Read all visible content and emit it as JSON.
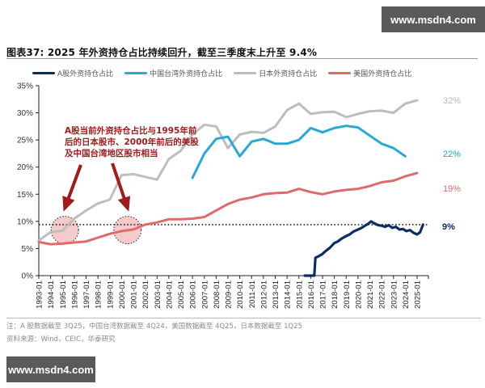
{
  "watermark": {
    "text": "www.msdn4.com"
  },
  "title": "图表37:  2025 年外资持仓占比持续回升，截至三季度末上升至 9.4%",
  "legend": [
    {
      "label": "A股外资持仓占比",
      "color": "#0d2d62"
    },
    {
      "label": "中国台湾外资持仓占比",
      "color": "#26a9d6"
    },
    {
      "label": "日本外资持仓占比",
      "color": "#bdbdbd"
    },
    {
      "label": "美国外资持仓占比",
      "color": "#e06a6a"
    }
  ],
  "annotation": {
    "lines": [
      "A股当前外资持仓占比与1995年前",
      "后的日本股市、2000年前后的美股",
      "及中国台湾地区股市相当"
    ],
    "color": "#a01c1c"
  },
  "end_labels": [
    {
      "text": "32%",
      "color": "#b5b5b5"
    },
    {
      "text": "22%",
      "color": "#1e9fcc"
    },
    {
      "text": "19%",
      "color": "#e06a6a"
    },
    {
      "text": "9%",
      "color": "#0d2d62"
    }
  ],
  "footer": {
    "note": "注：A 股数据截至 3Q25，中国台湾数据截至 4Q24，美国数据截至 4Q25，日本数据截至 1Q25",
    "source": "资料来源：Wind，CEIC，华泰研究"
  },
  "chart_data": {
    "type": "line",
    "title": "图表37:  2025 年外资持仓占比持续回升，截至三季度末上升至 9.4%",
    "xlabel": "",
    "ylabel": "",
    "ylim": [
      0,
      35
    ],
    "yticks": [
      "0%",
      "5%",
      "10%",
      "15%",
      "20%",
      "25%",
      "30%",
      "35%"
    ],
    "xticks": [
      "1993-01",
      "1994-01",
      "1995-01",
      "1996-01",
      "1997-01",
      "1998-01",
      "1999-01",
      "2000-01",
      "2001-01",
      "2002-01",
      "2003-01",
      "2004-01",
      "2005-01",
      "2006-01",
      "2007-01",
      "2008-01",
      "2009-01",
      "2010-01",
      "2011-01",
      "2012-01",
      "2013-01",
      "2014-01",
      "2015-01",
      "2016-01",
      "2017-01",
      "2018-01",
      "2019-01",
      "2020-01",
      "2021-01",
      "2022-01",
      "2023-01",
      "2024-01",
      "2025-01"
    ],
    "grid": false,
    "legend_position": "top",
    "reference_line": {
      "value": 9.4,
      "style": "dotted",
      "color": "#111111"
    },
    "series": [
      {
        "name": "A股外资持仓占比",
        "color": "#0d2d62",
        "x": [
          2015.5,
          2016.3,
          2016.4,
          2016.7,
          2017.0,
          2017.3,
          2017.6,
          2018.0,
          2018.3,
          2018.6,
          2019.0,
          2019.3,
          2019.6,
          2020.0,
          2020.3,
          2020.6,
          2020.9,
          2021.1,
          2021.4,
          2021.7,
          2022.0,
          2022.3,
          2022.6,
          2022.9,
          2023.2,
          2023.5,
          2023.8,
          2024.1,
          2024.4,
          2024.7,
          2025.0,
          2025.25,
          2025.5
        ],
        "values": [
          0,
          0,
          3.3,
          3.6,
          4.0,
          4.6,
          5.1,
          6.0,
          6.3,
          6.8,
          7.3,
          7.6,
          8.1,
          8.5,
          8.8,
          9.2,
          9.6,
          10.0,
          9.6,
          9.3,
          9.2,
          9.0,
          9.3,
          8.8,
          9.0,
          8.5,
          8.6,
          8.2,
          8.4,
          7.9,
          7.6,
          8.0,
          9.4
        ]
      },
      {
        "name": "中国台湾外资持仓占比",
        "color": "#26a9d6",
        "x": [
          2006,
          2007,
          2008,
          2009,
          2010,
          2011,
          2012,
          2013,
          2014,
          2015,
          2016,
          2017,
          2018,
          2019,
          2020,
          2021,
          2022,
          2023,
          2024
        ],
        "values": [
          18.0,
          22.5,
          25.2,
          25.6,
          22.0,
          24.7,
          25.2,
          24.3,
          24.3,
          25.0,
          27.2,
          26.4,
          27.2,
          27.6,
          27.3,
          25.8,
          24.3,
          23.5,
          22.0
        ]
      },
      {
        "name": "日本外资持仓占比",
        "color": "#bdbdbd",
        "x": [
          1993,
          1994,
          1995,
          1996,
          1997,
          1998,
          1999,
          2000,
          2001,
          2002,
          2003,
          2004,
          2005,
          2006,
          2007,
          2008,
          2009,
          2010,
          2011,
          2012,
          2013,
          2014,
          2015,
          2016,
          2017,
          2018,
          2019,
          2020,
          2021,
          2022,
          2023,
          2024,
          2025
        ],
        "values": [
          6.5,
          8.0,
          8.3,
          10.5,
          12.0,
          13.3,
          14.0,
          18.5,
          18.7,
          18.2,
          17.7,
          21.5,
          23.0,
          26.0,
          27.8,
          27.5,
          23.5,
          26.0,
          26.5,
          26.3,
          27.5,
          30.5,
          31.7,
          29.8,
          30.1,
          30.2,
          29.2,
          29.8,
          30.3,
          30.4,
          30.0,
          31.7,
          32.3
        ]
      },
      {
        "name": "美国外资持仓占比",
        "color": "#e06a6a",
        "x": [
          1993,
          1994,
          1995,
          1996,
          1997,
          1998,
          1999,
          2000,
          2001,
          2002,
          2003,
          2004,
          2005,
          2006,
          2007,
          2008,
          2009,
          2010,
          2011,
          2012,
          2013,
          2014,
          2015,
          2016,
          2017,
          2018,
          2019,
          2020,
          2021,
          2022,
          2023,
          2024,
          2025
        ],
        "values": [
          6.2,
          5.8,
          5.9,
          6.1,
          6.3,
          7.0,
          7.7,
          8.2,
          8.5,
          9.4,
          9.8,
          10.4,
          10.4,
          10.5,
          10.8,
          12.0,
          13.2,
          14.0,
          14.4,
          15.0,
          15.2,
          15.3,
          16.0,
          15.4,
          15.0,
          15.5,
          15.8,
          16.0,
          16.5,
          17.2,
          17.5,
          18.3,
          18.9
        ]
      }
    ],
    "annotations": [
      "A股当前外资持仓占比与1995年前后的日本股市、2000年前后的美股及中国台湾地区股市相当"
    ],
    "end_labels": [
      "32%",
      "22%",
      "19%",
      "9%"
    ]
  }
}
